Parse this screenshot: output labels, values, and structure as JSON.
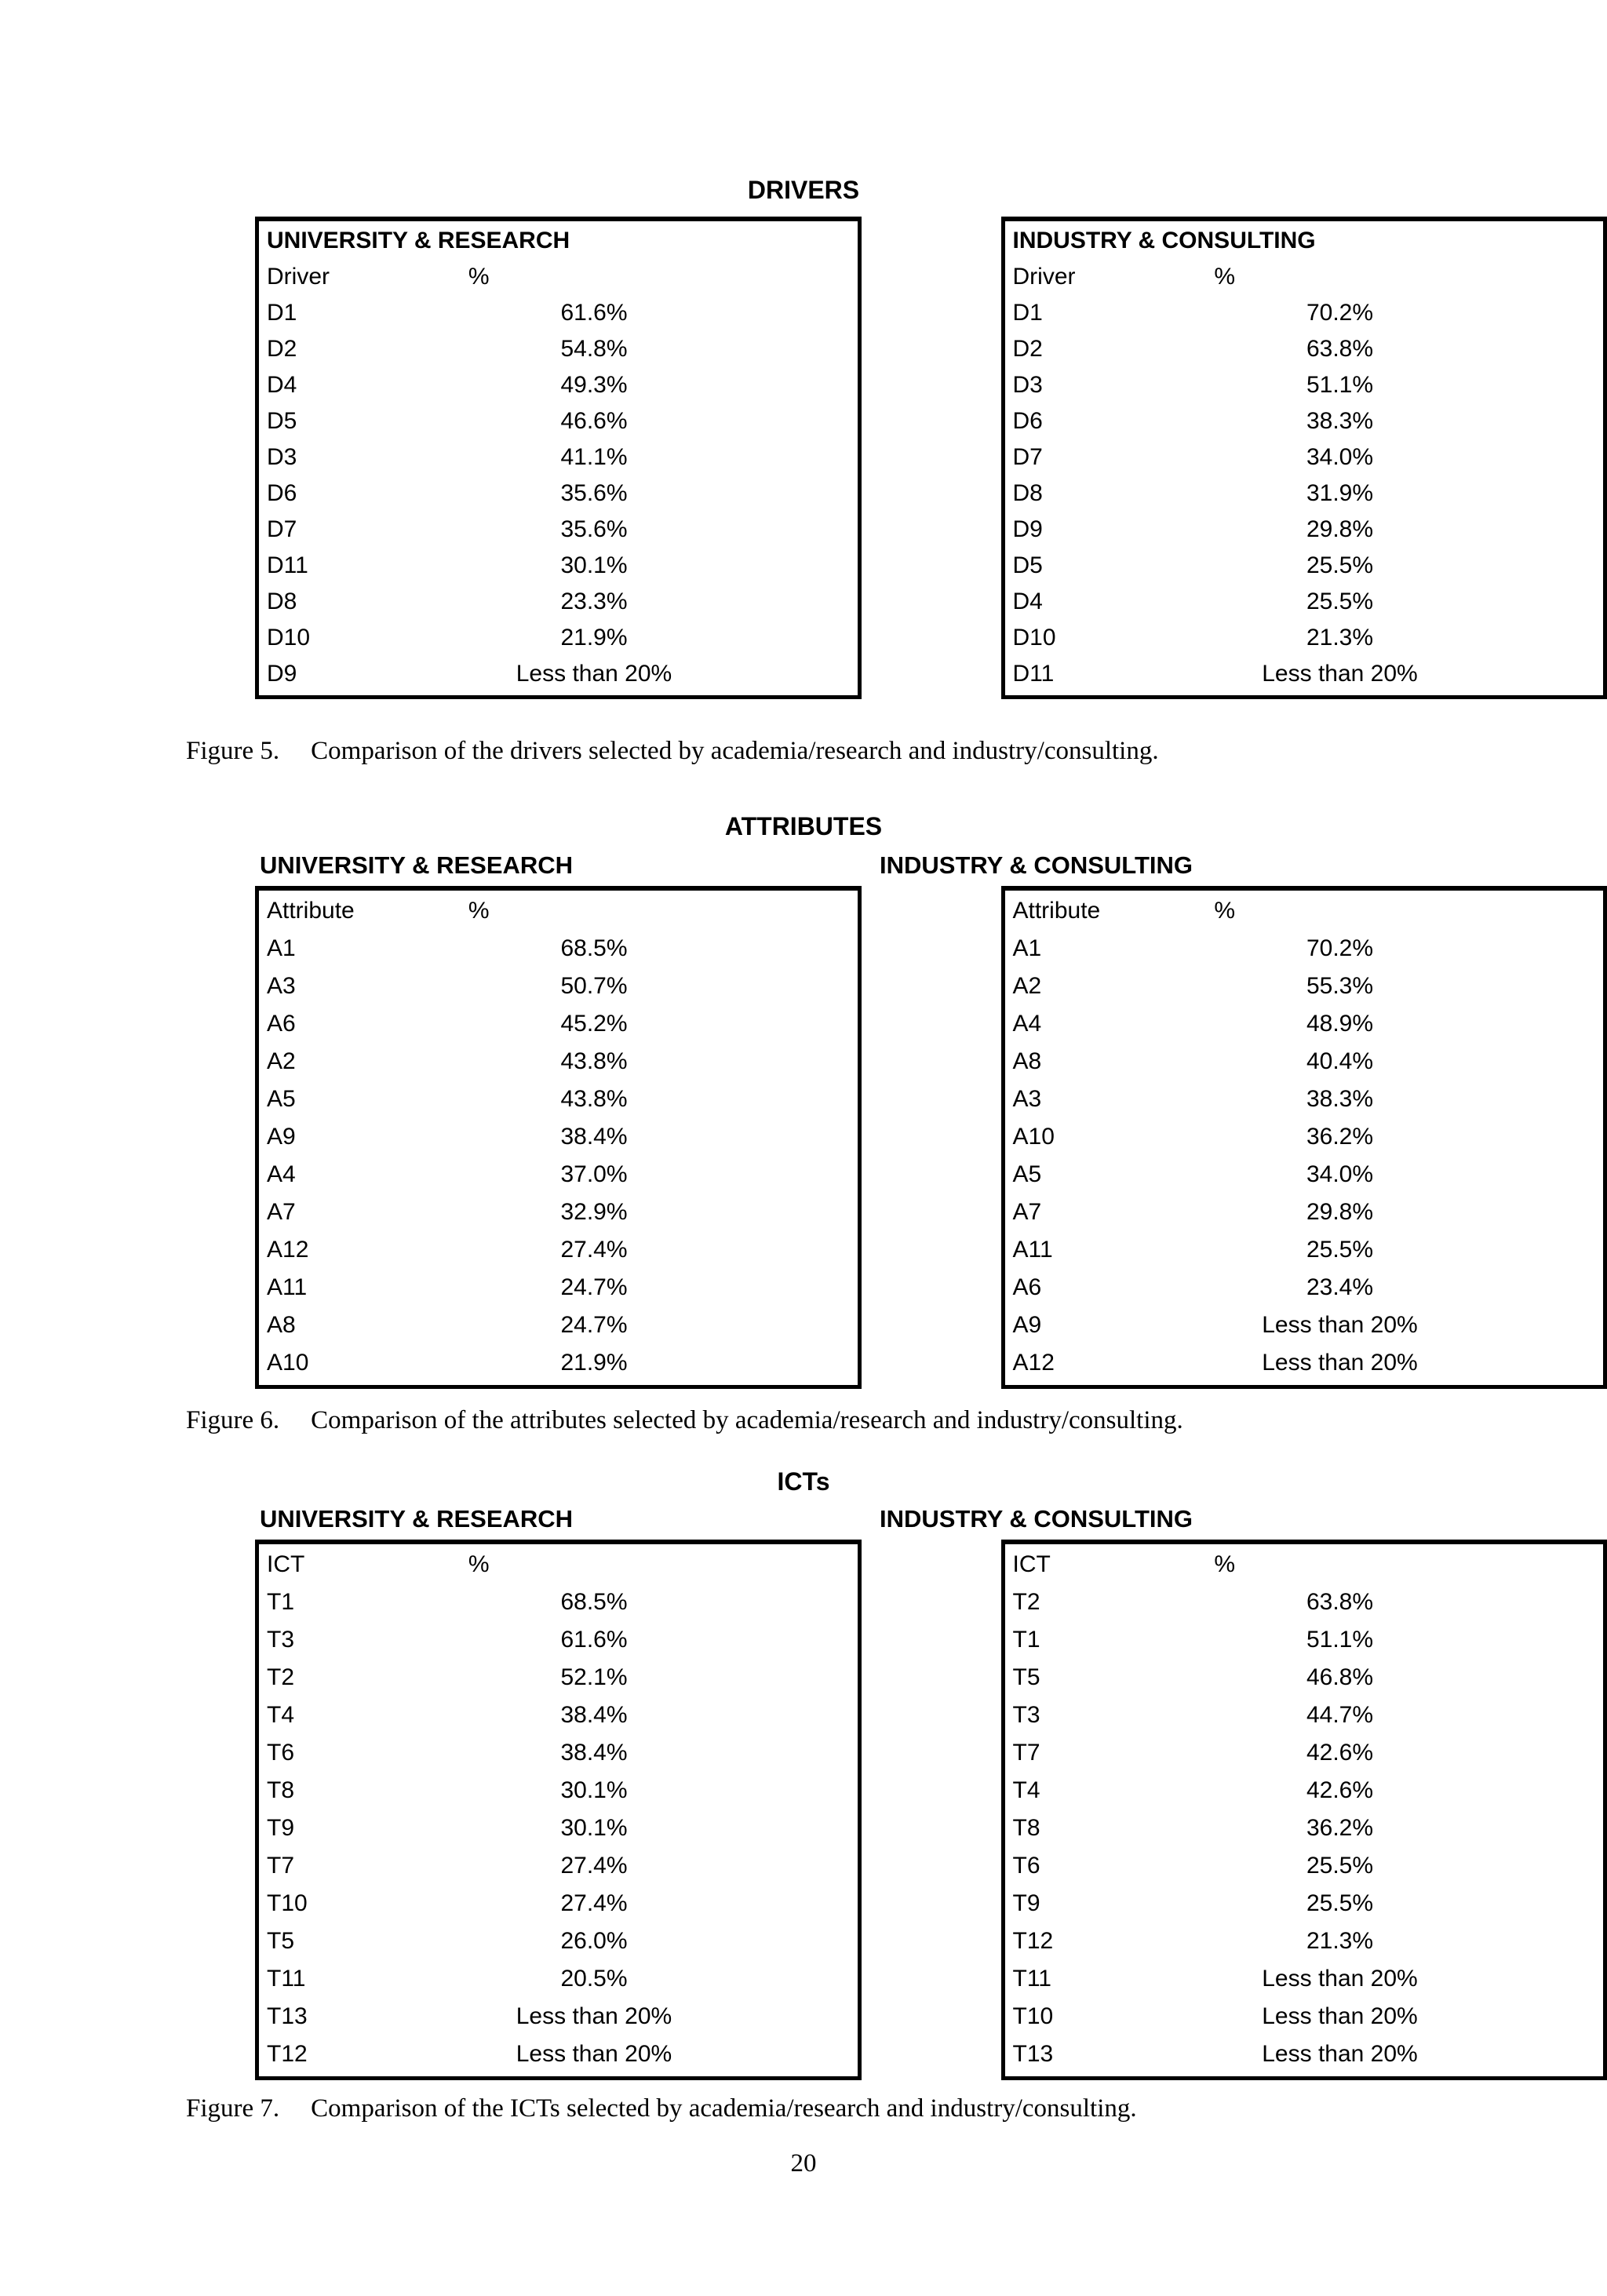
{
  "page_number": "20",
  "figures": [
    {
      "section_title": "DRIVERS",
      "caption": {
        "label": "Figure 5.",
        "text": "Comparison of the drivers selected by academia/research and industry/consulting."
      },
      "panels": [
        {
          "group_title": "UNIVERSITY & RESEARCH",
          "header": {
            "col1": "Driver",
            "col2": "%"
          },
          "rows": [
            {
              "label": "D1",
              "value": "61.6%"
            },
            {
              "label": "D2",
              "value": "54.8%"
            },
            {
              "label": "D4",
              "value": "49.3%"
            },
            {
              "label": "D5",
              "value": "46.6%"
            },
            {
              "label": "D3",
              "value": "41.1%"
            },
            {
              "label": "D6",
              "value": "35.6%"
            },
            {
              "label": "D7",
              "value": "35.6%"
            },
            {
              "label": "D11",
              "value": "30.1%"
            },
            {
              "label": "D8",
              "value": "23.3%"
            },
            {
              "label": "D10",
              "value": "21.9%"
            },
            {
              "label": "D9",
              "value": "Less than 20%"
            }
          ]
        },
        {
          "group_title": "INDUSTRY & CONSULTING",
          "header": {
            "col1": "Driver",
            "col2": "%"
          },
          "rows": [
            {
              "label": "D1",
              "value": "70.2%"
            },
            {
              "label": "D2",
              "value": "63.8%"
            },
            {
              "label": "D3",
              "value": "51.1%"
            },
            {
              "label": "D6",
              "value": "38.3%"
            },
            {
              "label": "D7",
              "value": "34.0%"
            },
            {
              "label": "D8",
              "value": "31.9%"
            },
            {
              "label": "D9",
              "value": "29.8%"
            },
            {
              "label": "D5",
              "value": "25.5%"
            },
            {
              "label": "D4",
              "value": "25.5%"
            },
            {
              "label": "D10",
              "value": "21.3%"
            },
            {
              "label": "D11",
              "value": "Less than 20%"
            }
          ]
        }
      ]
    },
    {
      "section_title": "ATTRIBUTES",
      "caption": {
        "label": "Figure 6.",
        "text": "Comparison of the attributes selected by academia/research and industry/consulting."
      },
      "panels": [
        {
          "group_title": "UNIVERSITY & RESEARCH",
          "header": {
            "col1": "Attribute",
            "col2": "%"
          },
          "rows": [
            {
              "label": "A1",
              "value": "68.5%"
            },
            {
              "label": "A3",
              "value": "50.7%"
            },
            {
              "label": "A6",
              "value": "45.2%"
            },
            {
              "label": "A2",
              "value": "43.8%"
            },
            {
              "label": "A5",
              "value": "43.8%"
            },
            {
              "label": "A9",
              "value": "38.4%"
            },
            {
              "label": "A4",
              "value": "37.0%"
            },
            {
              "label": "A7",
              "value": "32.9%"
            },
            {
              "label": "A12",
              "value": "27.4%"
            },
            {
              "label": "A11",
              "value": "24.7%"
            },
            {
              "label": "A8",
              "value": "24.7%"
            },
            {
              "label": "A10",
              "value": "21.9%"
            }
          ]
        },
        {
          "group_title": "INDUSTRY & CONSULTING",
          "header": {
            "col1": "Attribute",
            "col2": "%"
          },
          "rows": [
            {
              "label": "A1",
              "value": "70.2%"
            },
            {
              "label": "A2",
              "value": "55.3%"
            },
            {
              "label": "A4",
              "value": "48.9%"
            },
            {
              "label": "A8",
              "value": "40.4%"
            },
            {
              "label": "A3",
              "value": "38.3%"
            },
            {
              "label": "A10",
              "value": "36.2%"
            },
            {
              "label": "A5",
              "value": "34.0%"
            },
            {
              "label": "A7",
              "value": "29.8%"
            },
            {
              "label": "A11",
              "value": "25.5%"
            },
            {
              "label": "A6",
              "value": "23.4%"
            },
            {
              "label": "A9",
              "value": "Less than 20%"
            },
            {
              "label": "A12",
              "value": "Less than 20%"
            }
          ]
        }
      ]
    },
    {
      "section_title": "ICTs",
      "caption": {
        "label": "Figure 7.",
        "text": "Comparison of the ICTs selected by academia/research and industry/consulting."
      },
      "panels": [
        {
          "group_title": "UNIVERSITY & RESEARCH",
          "header": {
            "col1": "ICT",
            "col2": "%"
          },
          "rows": [
            {
              "label": "T1",
              "value": "68.5%"
            },
            {
              "label": "T3",
              "value": "61.6%"
            },
            {
              "label": "T2",
              "value": "52.1%"
            },
            {
              "label": "T4",
              "value": "38.4%"
            },
            {
              "label": "T6",
              "value": "38.4%"
            },
            {
              "label": "T8",
              "value": "30.1%"
            },
            {
              "label": "T9",
              "value": "30.1%"
            },
            {
              "label": "T7",
              "value": "27.4%"
            },
            {
              "label": "T10",
              "value": "27.4%"
            },
            {
              "label": "T5",
              "value": "26.0%"
            },
            {
              "label": "T11",
              "value": "20.5%"
            },
            {
              "label": "T13",
              "value": "Less than 20%"
            },
            {
              "label": "T12",
              "value": "Less than 20%"
            }
          ]
        },
        {
          "group_title": "INDUSTRY & CONSULTING",
          "header": {
            "col1": "ICT",
            "col2": "%"
          },
          "rows": [
            {
              "label": "T2",
              "value": "63.8%"
            },
            {
              "label": "T1",
              "value": "51.1%"
            },
            {
              "label": "T5",
              "value": "46.8%"
            },
            {
              "label": "T3",
              "value": "44.7%"
            },
            {
              "label": "T7",
              "value": "42.6%"
            },
            {
              "label": "T4",
              "value": "42.6%"
            },
            {
              "label": "T8",
              "value": "36.2%"
            },
            {
              "label": "T6",
              "value": "25.5%"
            },
            {
              "label": "T9",
              "value": "25.5%"
            },
            {
              "label": "T12",
              "value": "21.3%"
            },
            {
              "label": "T11",
              "value": "Less than 20%"
            },
            {
              "label": "T10",
              "value": "Less than 20%"
            },
            {
              "label": "T13",
              "value": "Less than 20%"
            }
          ]
        }
      ]
    }
  ]
}
